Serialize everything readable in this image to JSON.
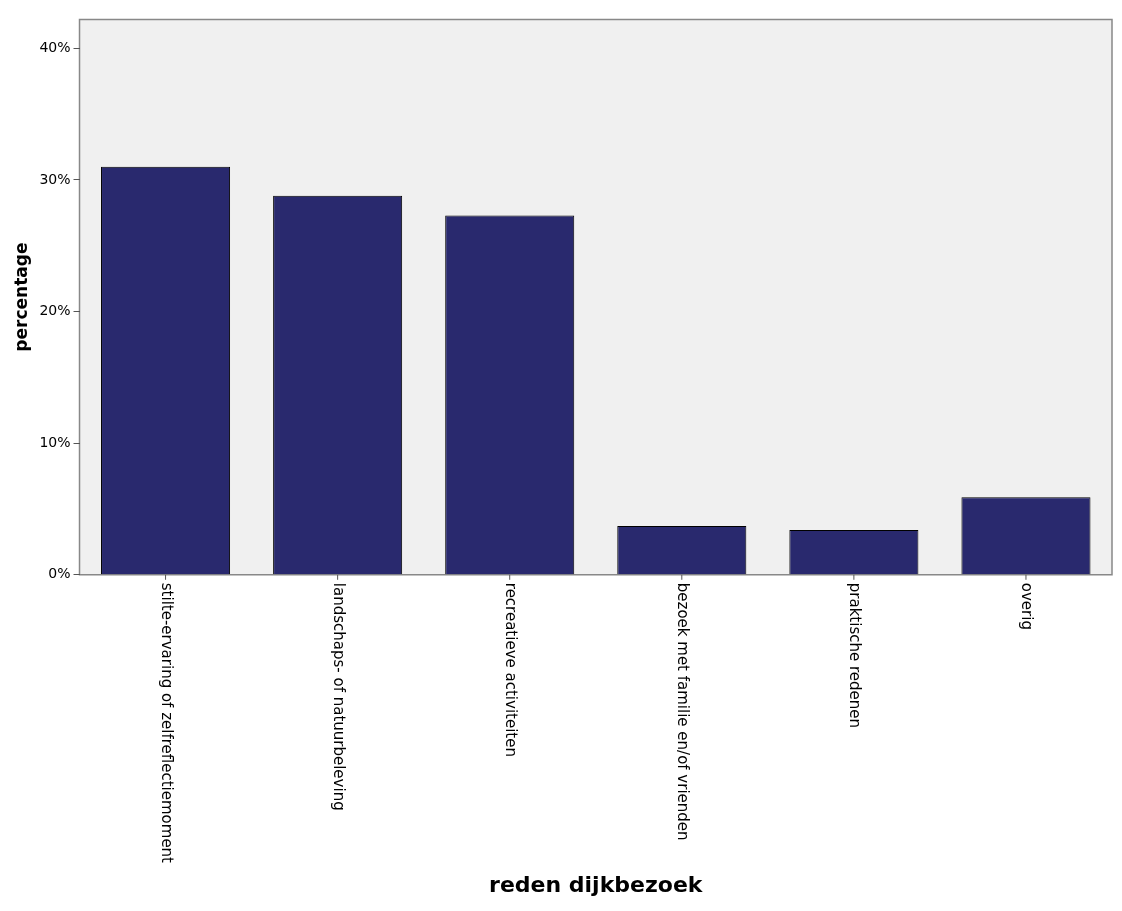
{
  "chart_data": {
    "type": "bar",
    "xlabel": "reden dijkbezoek",
    "ylabel": "percentage",
    "categories": [
      "stilte-ervaring of zelfreflectiemoment",
      "landschaps- of natuurbeleving",
      "recreatieve activiteiten",
      "bezoek met familie en/of vrienden",
      "praktische redenen",
      "overig"
    ],
    "values": [
      31.0,
      28.8,
      27.3,
      3.7,
      3.4,
      5.9
    ],
    "color": "#29296e",
    "ylim": [
      0,
      42.2
    ],
    "yticks": [
      {
        "value": 0,
        "label": "0%"
      },
      {
        "value": 10,
        "label": "10%"
      },
      {
        "value": 20,
        "label": "20%"
      },
      {
        "value": 30,
        "label": "30%"
      },
      {
        "value": 40,
        "label": "40%"
      }
    ],
    "grid": false,
    "legend": false
  }
}
